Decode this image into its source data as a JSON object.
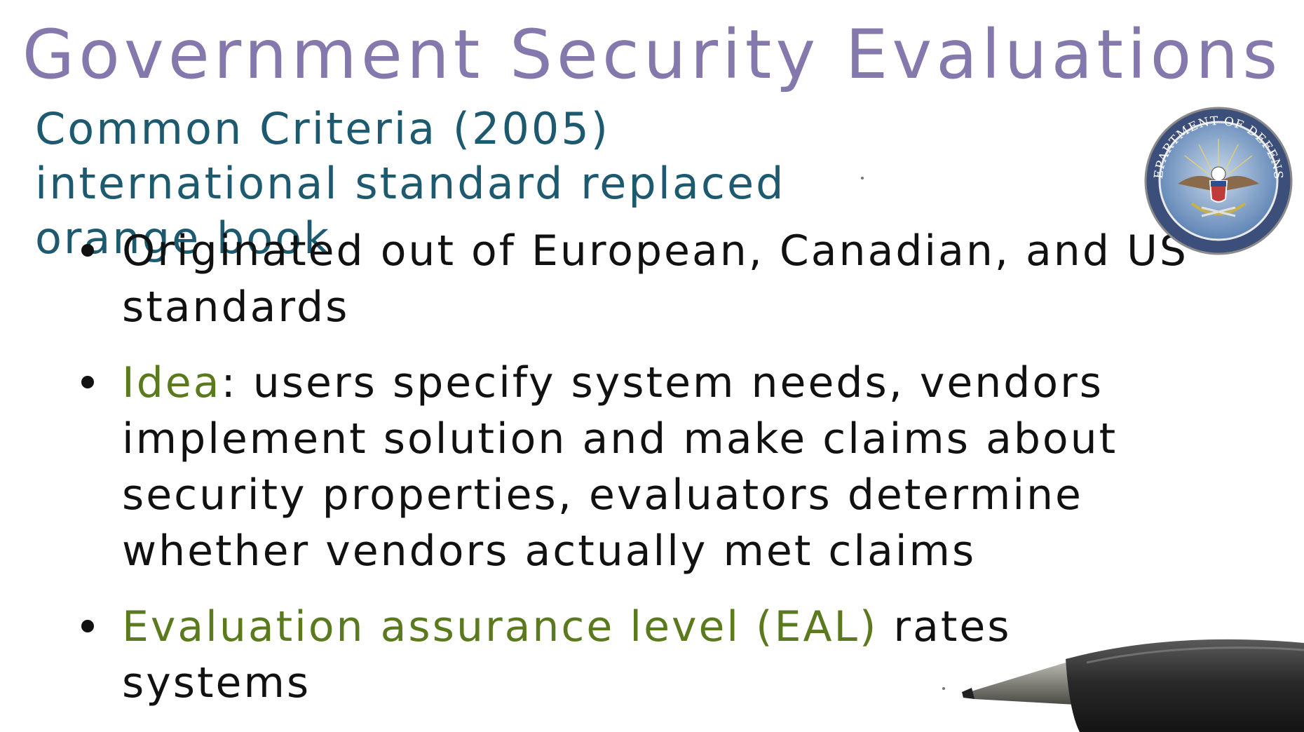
{
  "slide": {
    "title": "Government Security Evaluations",
    "subtitle": "Common Criteria (2005) international standard replaced orange book",
    "bullets": [
      {
        "parts": [
          {
            "text": "Originated out of European, Canadian, and US standards",
            "emphasis": false
          }
        ]
      },
      {
        "parts": [
          {
            "text": "Idea",
            "emphasis": true
          },
          {
            "text": ": users specify system needs, vendors implement solution and make claims about security properties, evaluators determine whether vendors actually met claims",
            "emphasis": false
          }
        ]
      },
      {
        "parts": [
          {
            "text": "Evaluation assurance level (EAL)",
            "emphasis": true
          },
          {
            "text": " rates systems",
            "emphasis": false
          }
        ]
      }
    ],
    "seal": {
      "text": "DEPARTMENT OF DEFENSE",
      "icon": "department-of-defense-seal-icon"
    },
    "pen": {
      "icon": "pen-icon"
    }
  },
  "colors": {
    "title": "#8478ad",
    "subtitle": "#1d5a70",
    "body": "#111111",
    "emphasis": "#5b7a1e"
  }
}
